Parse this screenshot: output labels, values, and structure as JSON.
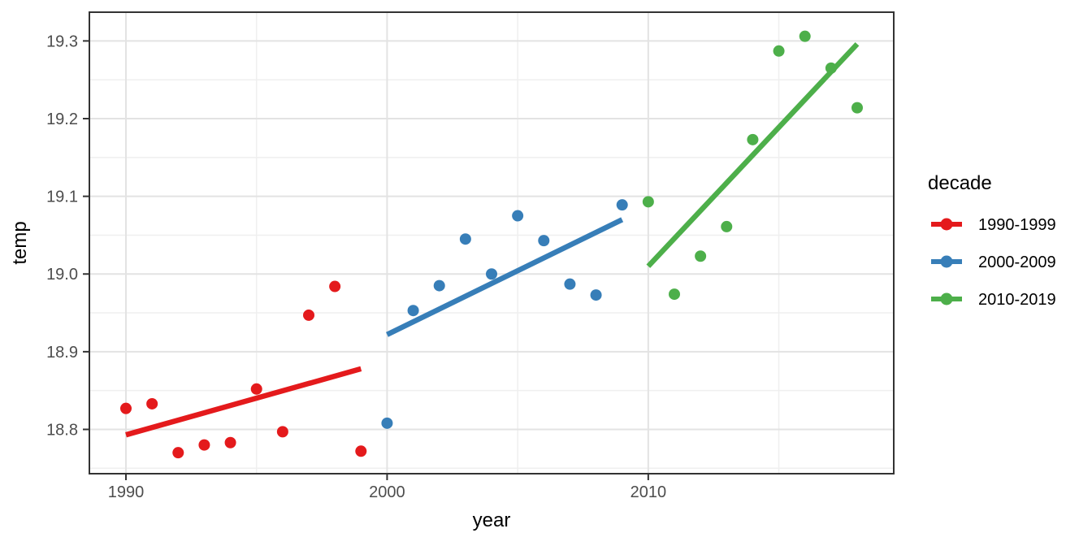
{
  "chart_data": {
    "type": "scatter",
    "title": "",
    "xlabel": "year",
    "ylabel": "temp",
    "legend_title": "decade",
    "legend_position": "right",
    "grid": true,
    "xlim": [
      1988.6,
      2019.4
    ],
    "ylim": [
      18.743,
      19.337
    ],
    "x_major_ticks": [
      1990,
      2000,
      2010
    ],
    "x_minor_gridlines": [
      1995,
      2005,
      2015
    ],
    "y_major_ticks": [
      18.8,
      18.9,
      19.0,
      19.1,
      19.2,
      19.3
    ],
    "y_minor_gridlines": [
      18.75,
      18.85,
      18.95,
      19.05,
      19.15,
      19.25
    ],
    "series": [
      {
        "name": "1990-1999",
        "color": "#E41A1C",
        "x": [
          1990,
          1991,
          1992,
          1993,
          1994,
          1995,
          1996,
          1997,
          1998,
          1999
        ],
        "y": [
          18.827,
          18.833,
          18.77,
          18.78,
          18.783,
          18.852,
          18.797,
          18.947,
          18.984,
          18.772
        ],
        "trend": {
          "x": [
            1990,
            1999
          ],
          "y": [
            18.793,
            18.878
          ]
        }
      },
      {
        "name": "2000-2009",
        "color": "#377EB8",
        "x": [
          2000,
          2001,
          2002,
          2003,
          2004,
          2005,
          2006,
          2007,
          2008,
          2009
        ],
        "y": [
          18.808,
          18.953,
          18.985,
          19.045,
          19.0,
          19.075,
          19.043,
          18.987,
          18.973,
          19.089
        ],
        "trend": {
          "x": [
            2000,
            2009
          ],
          "y": [
            18.922,
            19.07
          ]
        }
      },
      {
        "name": "2010-2019",
        "color": "#4DAF4A",
        "x": [
          2010,
          2011,
          2012,
          2013,
          2014,
          2015,
          2016,
          2017,
          2018
        ],
        "y": [
          19.093,
          18.974,
          19.023,
          19.061,
          19.173,
          19.287,
          19.306,
          19.265,
          19.214
        ],
        "trend": {
          "x": [
            2010,
            2018
          ],
          "y": [
            19.01,
            19.296
          ]
        }
      }
    ],
    "style": {
      "panel_background": "#ffffff",
      "panel_border": "#333333",
      "major_gridline": "#e3e3e3",
      "minor_gridline": "#efefef",
      "tick_color": "#333333",
      "tick_text_color": "#4d4d4d"
    }
  }
}
